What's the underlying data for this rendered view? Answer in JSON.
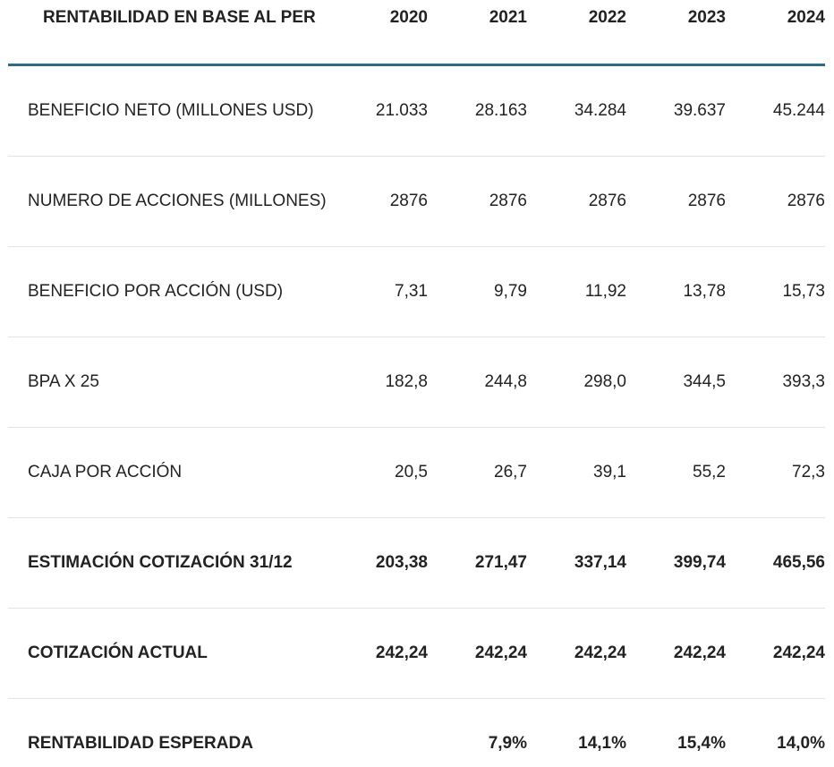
{
  "table": {
    "header": [
      "RENTABILIDAD EN BASE AL PER",
      "2020",
      "2021",
      "2022",
      "2023",
      "2024"
    ],
    "rows": [
      [
        "BENEFICIO NETO (MILLONES USD)",
        "21.033",
        "28.163",
        "34.284",
        "39.637",
        "45.244"
      ],
      [
        "NUMERO DE ACCIONES (MILLONES)",
        "2876",
        "2876",
        "2876",
        "2876",
        "2876"
      ],
      [
        "BENEFICIO POR ACCIÓN (USD)",
        "7,31",
        "9,79",
        "11,92",
        "13,78",
        "15,73"
      ],
      [
        "BPA X 25",
        "182,8",
        "244,8",
        "298,0",
        "344,5",
        "393,3"
      ],
      [
        "CAJA POR ACCIÓN",
        "20,5",
        "26,7",
        "39,1",
        "55,2",
        "72,3"
      ],
      [
        "ESTIMACIÓN COTIZACIÓN 31/12",
        "203,38",
        "271,47",
        "337,14",
        "399,74",
        "465,56"
      ],
      [
        "COTIZACIÓN ACTUAL",
        "242,24",
        "242,24",
        "242,24",
        "242,24",
        "242,24"
      ],
      [
        "RENTABILIDAD ESPERADA",
        null,
        "7,9%",
        "14,1%",
        "15,4%",
        "14,0%"
      ]
    ]
  }
}
